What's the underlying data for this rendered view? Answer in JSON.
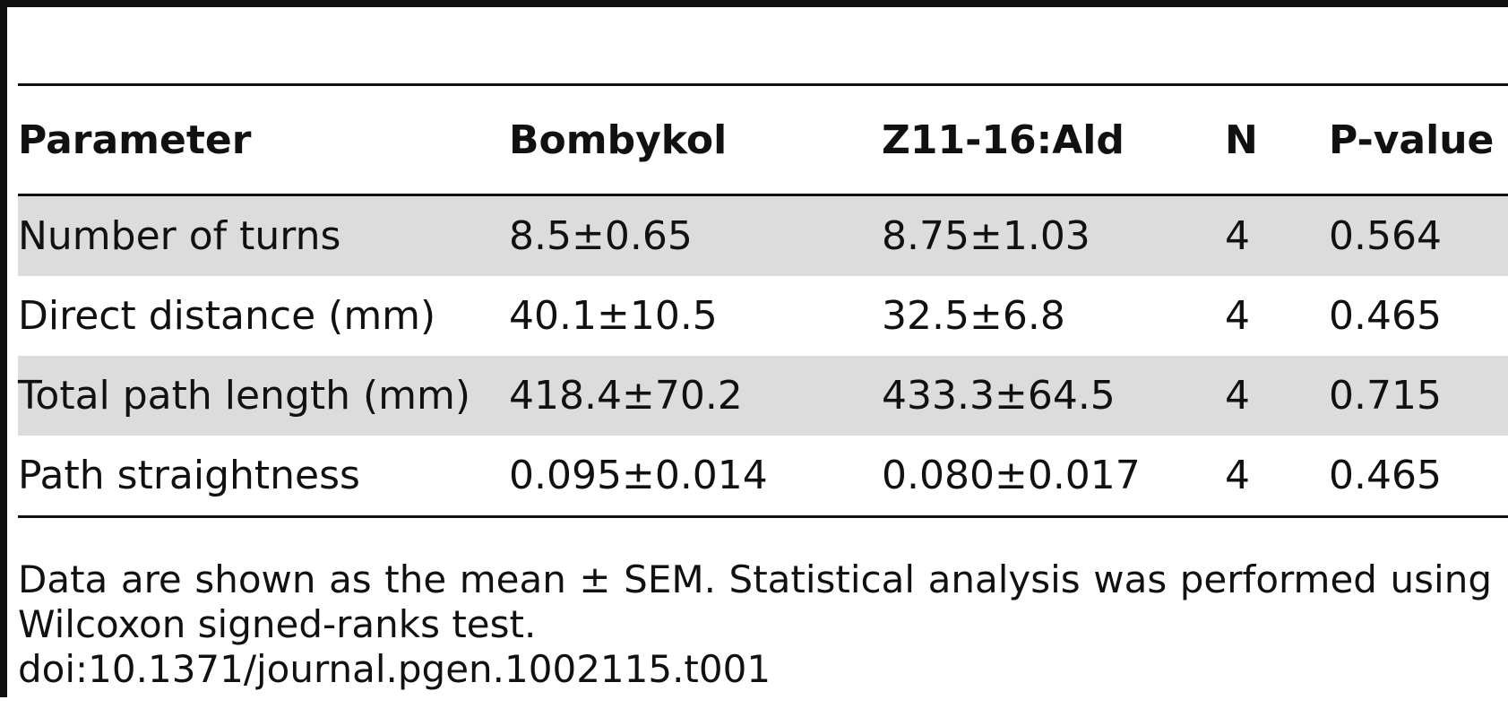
{
  "table": {
    "headers": [
      "Parameter",
      "Bombykol",
      "Z11-16:Ald",
      "N",
      "P-value"
    ],
    "rows": [
      {
        "parameter": "Number of turns",
        "bombykol": "8.5±0.65",
        "z11_16_ald": "8.75±1.03",
        "n": "4",
        "p_value": "0.564"
      },
      {
        "parameter": "Direct distance (mm)",
        "bombykol": "40.1±10.5",
        "z11_16_ald": "32.5±6.8",
        "n": "4",
        "p_value": "0.465"
      },
      {
        "parameter": "Total path length (mm)",
        "bombykol": "418.4±70.2",
        "z11_16_ald": "433.3±64.5",
        "n": "4",
        "p_value": "0.715"
      },
      {
        "parameter": "Path straightness",
        "bombykol": "0.095±0.014",
        "z11_16_ald": "0.080±0.017",
        "n": "4",
        "p_value": "0.465"
      }
    ]
  },
  "footnote": "Data are shown as the mean ± SEM. Statistical analysis was performed using Wilcoxon signed-ranks test.",
  "doi": "doi:10.1371/journal.pgen.1002115.t001",
  "colors": {
    "rule": "#111111",
    "row_shade": "#dcdcdc",
    "background": "#ffffff"
  }
}
